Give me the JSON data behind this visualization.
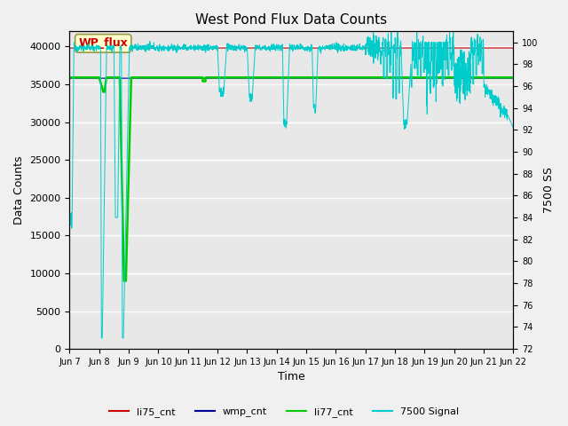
{
  "title": "West Pond Flux Data Counts",
  "xlabel": "Time",
  "ylabel_left": "Data Counts",
  "ylabel_right": "7500 SS",
  "ylim_left": [
    0,
    42000
  ],
  "ylim_right": [
    72,
    101
  ],
  "annotation_text": "WP_flux",
  "bg_color": "#f0f0f0",
  "plot_bg_color": "#e8e8e8",
  "grid_color": "#ffffff",
  "yticks_left": [
    0,
    5000,
    10000,
    15000,
    20000,
    25000,
    30000,
    35000,
    40000
  ],
  "yticks_right": [
    72,
    74,
    76,
    78,
    80,
    82,
    84,
    86,
    88,
    90,
    92,
    94,
    96,
    98,
    100
  ],
  "xtick_labels": [
    "Jun 7",
    "Jun 8",
    "Jun 9",
    "Jun 10",
    "Jun 11",
    "Jun 12",
    "Jun 13",
    "Jun 14",
    "Jun 15",
    "Jun 16",
    "Jun 17",
    "Jun 18",
    "Jun 19",
    "Jun 20",
    "Jun 21",
    "Jun 22"
  ],
  "xtick_positions": [
    0,
    1,
    2,
    3,
    4,
    5,
    6,
    7,
    8,
    9,
    10,
    11,
    12,
    13,
    14,
    15
  ],
  "li75_color": "#cc0000",
  "wmp_color": "#000099",
  "li77_color": "#00cc00",
  "sig_color": "#00cccc",
  "li75_level": 39800,
  "wmp_level": 35800,
  "li77_level": 35900,
  "sig_base": 99.5
}
